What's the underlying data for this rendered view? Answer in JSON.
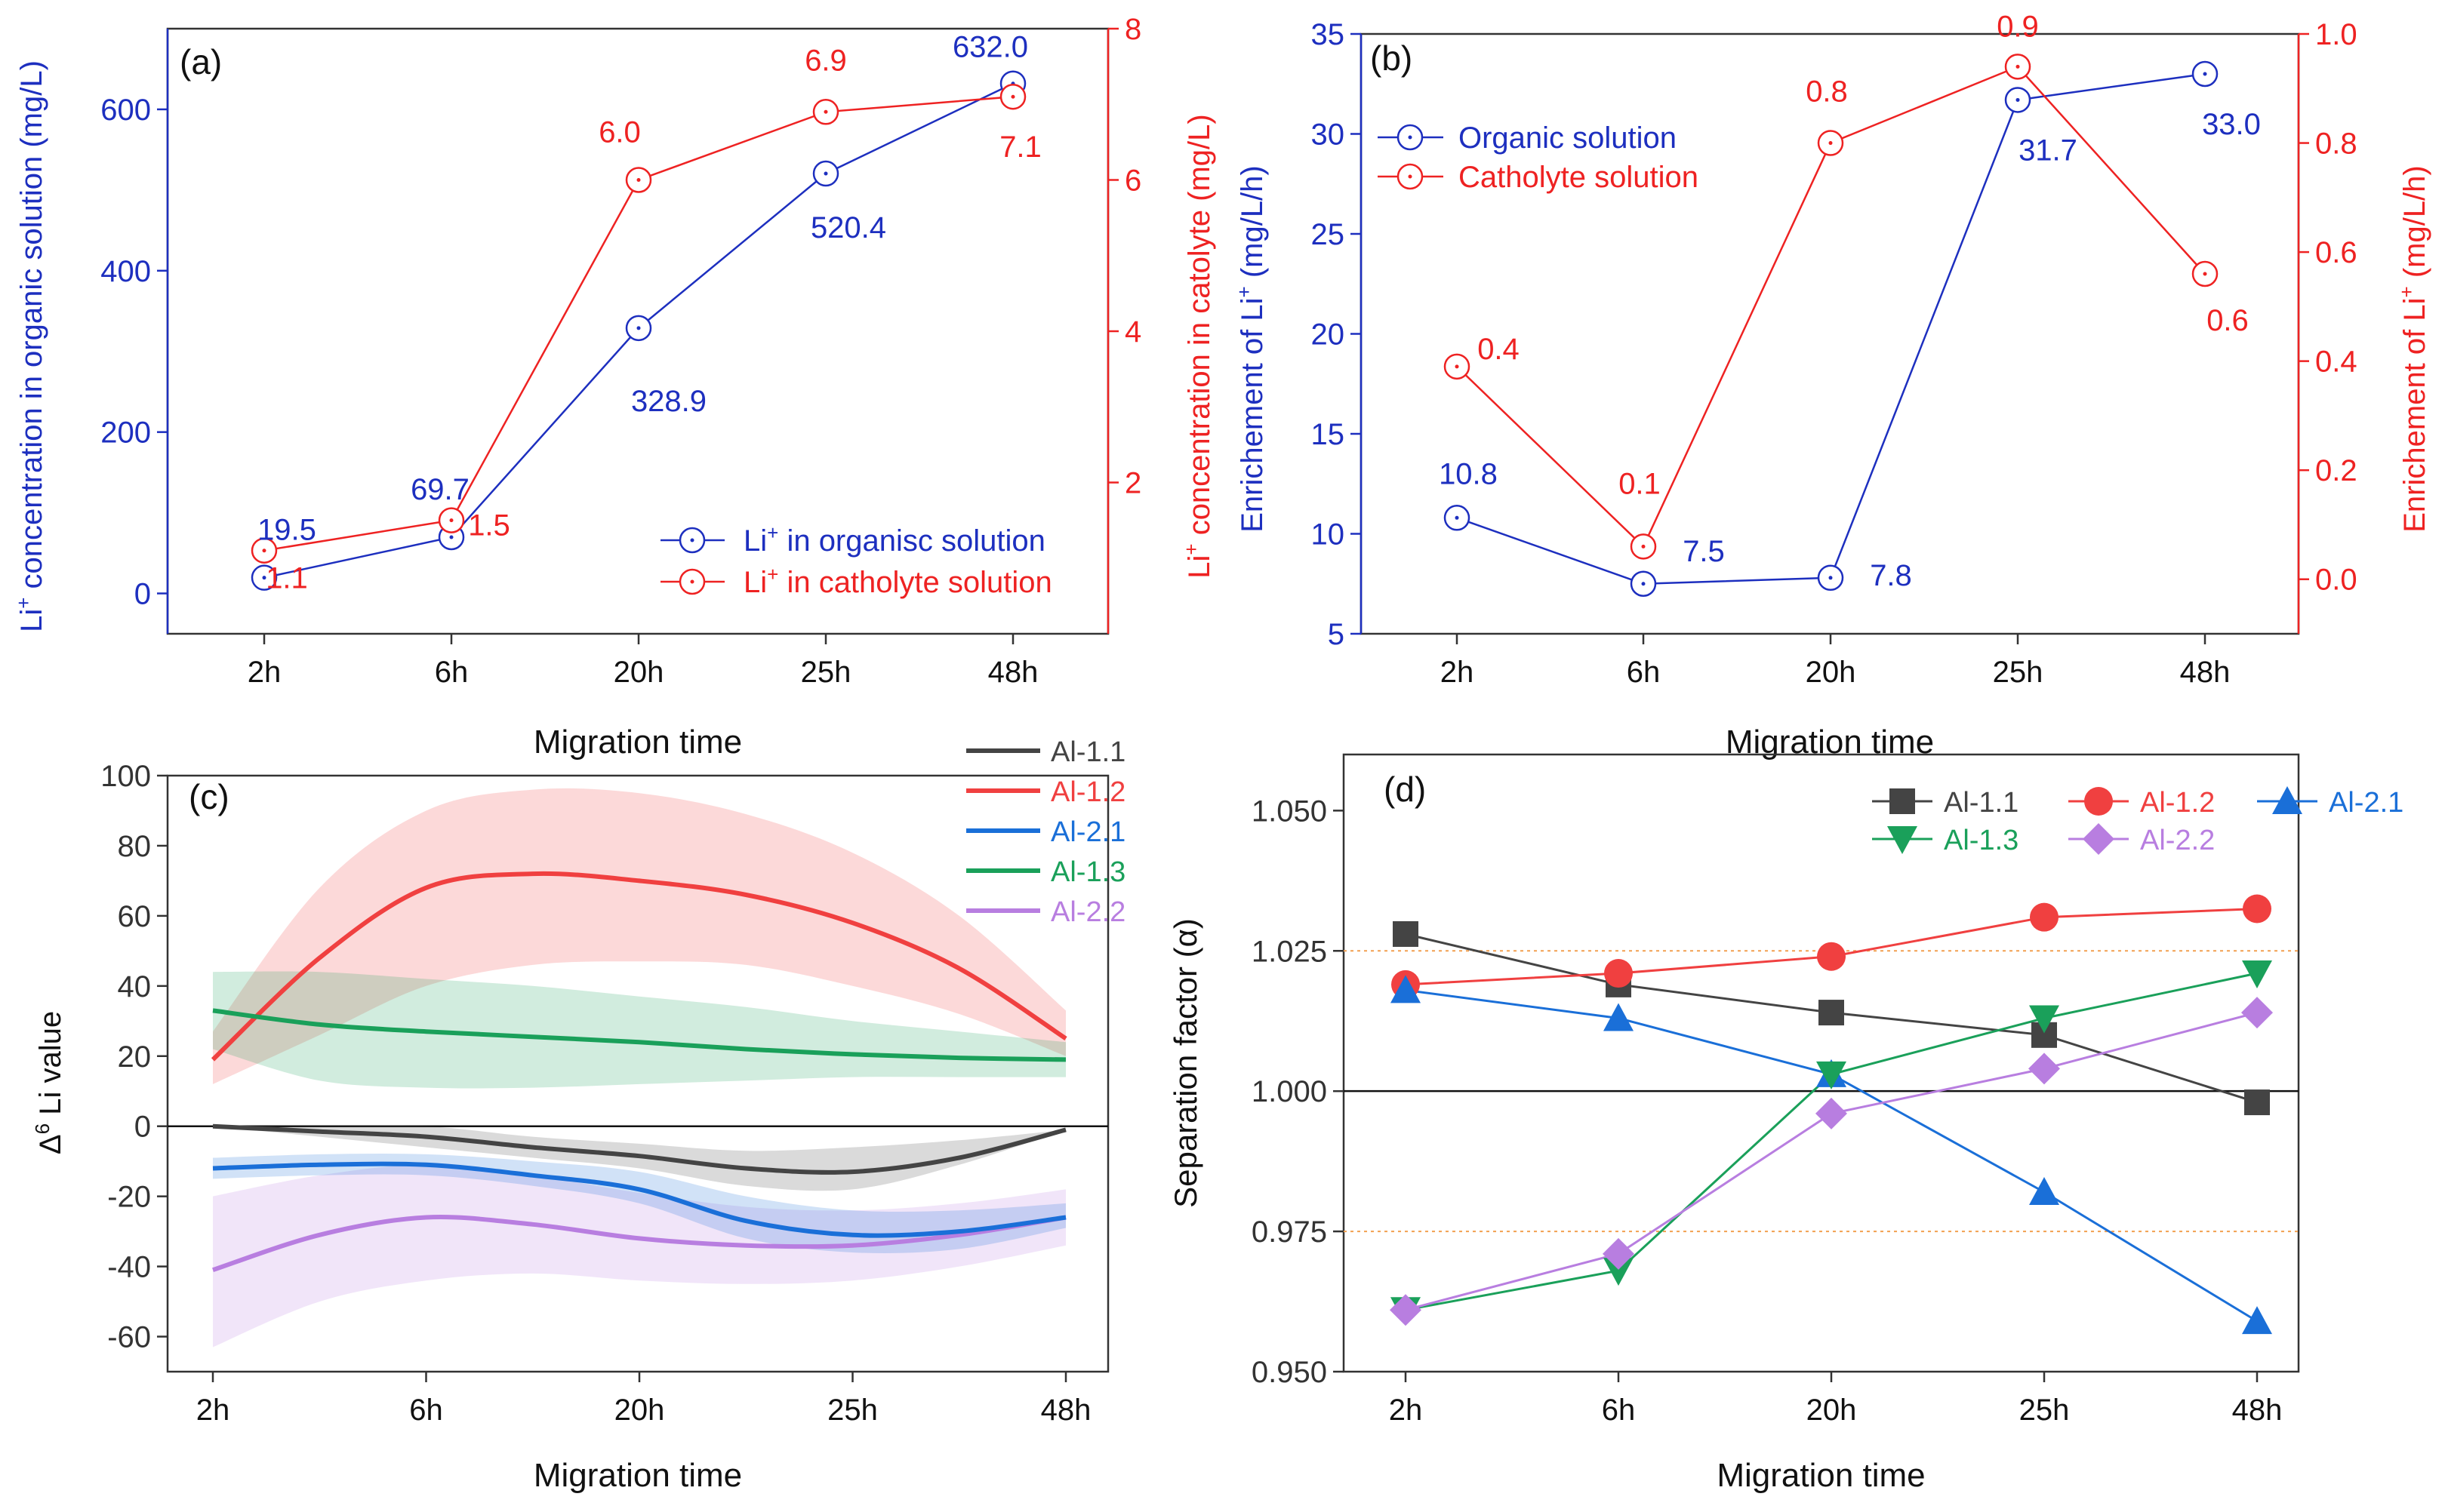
{
  "figure": {
    "colors": {
      "blue": "#1d2fbf",
      "red": "#ee2222",
      "black": "#333333",
      "al11": "#444444",
      "al12": "#f04040",
      "al21": "#1a6fd8",
      "al13": "#1aa05a",
      "al22": "#b87ee0",
      "orange_ref": "#f2a050"
    }
  },
  "chart_data": [
    {
      "panel": "a",
      "type": "line",
      "panel_label": "(a)",
      "categories": [
        "2h",
        "6h",
        "20h",
        "25h",
        "48h"
      ],
      "xlabel": "Migration time",
      "ylabel_left": {
        "pre": "Li",
        "sup": "+",
        "post": " concentration in organic solution (mg/L)"
      },
      "ylabel_right": {
        "pre": "Li",
        "sup": "+",
        "post": " concentration in catolyte (mg/L)"
      },
      "ylim_left": [
        -50,
        700
      ],
      "ylim_right": [
        0,
        8
      ],
      "yticks_left": [
        "0",
        "200",
        "400",
        "600"
      ],
      "yticks_right": [
        "2",
        "4",
        "6",
        "8"
      ],
      "series": [
        {
          "name_pre": "Li",
          "name_sup": "+",
          "name_post": " in organisc solution",
          "axis": "left",
          "values": [
            19.5,
            69.7,
            328.9,
            520.4,
            632.0
          ],
          "labels": [
            "19.5",
            "69.7",
            "328.9",
            "520.4",
            "632.0"
          ]
        },
        {
          "name_pre": "Li",
          "name_sup": "+",
          "name_post": " in catholyte solution",
          "axis": "right",
          "values": [
            1.1,
            1.5,
            6.0,
            6.9,
            7.1
          ],
          "labels": [
            "1.1",
            "1.5",
            "6.0",
            "6.9",
            "7.1"
          ]
        }
      ],
      "legend": "bottom-right"
    },
    {
      "panel": "b",
      "type": "line",
      "panel_label": "(b)",
      "categories": [
        "2h",
        "6h",
        "20h",
        "25h",
        "48h"
      ],
      "xlabel": "Migration time",
      "ylabel_left": {
        "pre": "Enrichement of Li",
        "sup": "+",
        "post": " (mg/L/h)"
      },
      "ylabel_right": {
        "pre": "Enrichement of Li",
        "sup": "+",
        "post": " (mg/L/h)"
      },
      "ylim_left": [
        5,
        35
      ],
      "ylim_right": [
        -0.1,
        1.0
      ],
      "yticks_left": [
        "5",
        "10",
        "15",
        "20",
        "25",
        "30",
        "35"
      ],
      "yticks_right": [
        "0.0",
        "0.2",
        "0.4",
        "0.6",
        "0.8",
        "1.0"
      ],
      "series": [
        {
          "name": "Organic solution",
          "axis": "left",
          "values": [
            10.8,
            7.5,
            7.8,
            31.7,
            33.0
          ],
          "labels": [
            "10.8",
            "7.5",
            "7.8",
            "31.7",
            "33.0"
          ]
        },
        {
          "name": "Catholyte solution",
          "axis": "right",
          "values": [
            0.39,
            0.06,
            0.8,
            0.94,
            0.56
          ],
          "labels": [
            "0.4",
            "0.1",
            "0.8",
            "0.9",
            "0.6"
          ]
        }
      ],
      "legend": "top-left"
    },
    {
      "panel": "c",
      "type": "area",
      "panel_label": "(c)",
      "categories": [
        "2h",
        "6h",
        "20h",
        "25h",
        "48h"
      ],
      "xlabel": "Migration time",
      "ylabel": {
        "pre": "Δ",
        "sup": "6",
        "post": " Li value"
      },
      "ylim": [
        -70,
        100
      ],
      "yticks": [
        "-60",
        "-40",
        "-20",
        "0",
        "20",
        "40",
        "60",
        "80",
        "100"
      ],
      "series": [
        {
          "name": "Al-1.1",
          "x": [
            0,
            0.5,
            1,
            1.5,
            2,
            2.5,
            3,
            3.5,
            4
          ],
          "mean": [
            0,
            -1.5,
            -3,
            -6,
            -8.5,
            -12,
            -13,
            -9,
            -1
          ],
          "lower": [
            0,
            -3,
            -6,
            -9,
            -12,
            -17,
            -18,
            -11,
            -1
          ],
          "upper": [
            0,
            0,
            0,
            -3,
            -5,
            -7,
            -6,
            -4,
            -1
          ]
        },
        {
          "name": "Al-1.2",
          "x": [
            0,
            0.5,
            1,
            1.5,
            2,
            2.5,
            3,
            3.5,
            4
          ],
          "mean": [
            19,
            48,
            68,
            72,
            70,
            66,
            58,
            45,
            25
          ],
          "lower": [
            12,
            26,
            40,
            46,
            47,
            46,
            40,
            32,
            20
          ],
          "upper": [
            27,
            68,
            90,
            96,
            95,
            89,
            78,
            60,
            33
          ]
        },
        {
          "name": "Al-2.1",
          "x": [
            0,
            0.5,
            1,
            1.5,
            2,
            2.5,
            3,
            3.5,
            4
          ],
          "mean": [
            -12,
            -11,
            -11,
            -14,
            -18,
            -27,
            -31,
            -30,
            -26
          ],
          "lower": [
            -15,
            -14,
            -14,
            -17,
            -22,
            -32,
            -36,
            -35,
            -29
          ],
          "upper": [
            -9,
            -8,
            -8,
            -10,
            -13,
            -20,
            -24,
            -24,
            -22
          ]
        },
        {
          "name": "Al-1.3",
          "x": [
            0,
            0.5,
            1,
            1.5,
            2,
            2.5,
            3,
            3.5,
            4
          ],
          "mean": [
            33,
            29,
            27,
            25.5,
            24,
            22,
            20.5,
            19.5,
            19
          ],
          "lower": [
            22,
            13,
            11,
            11,
            12,
            13,
            14,
            14,
            14
          ],
          "upper": [
            44,
            44,
            42,
            40,
            37,
            34,
            30,
            27,
            24
          ]
        },
        {
          "name": "Al-2.2",
          "x": [
            0,
            0.5,
            1,
            1.5,
            2,
            2.5,
            3,
            3.5,
            4
          ],
          "mean": [
            -41,
            -31,
            -26,
            -28,
            -32,
            -34,
            -34,
            -31,
            -26
          ],
          "lower": [
            -63,
            -50,
            -44,
            -42,
            -44,
            -45,
            -44,
            -40,
            -34
          ],
          "upper": [
            -20,
            -14,
            -11,
            -14,
            -19,
            -23,
            -24,
            -22,
            -18
          ]
        }
      ],
      "legend": "top-right"
    },
    {
      "panel": "d",
      "type": "line",
      "panel_label": "(d)",
      "categories": [
        "2h",
        "6h",
        "20h",
        "25h",
        "48h"
      ],
      "xlabel": "Migration time",
      "ylabel": "Separation factor (α)",
      "ylim": [
        0.95,
        1.06
      ],
      "yticks": [
        "0.950",
        "0.975",
        "1.000",
        "1.025",
        "1.050"
      ],
      "reference_lines": [
        0.975,
        1.0,
        1.025
      ],
      "series": [
        {
          "name": "Al-1.1",
          "marker": "square",
          "values": [
            1.028,
            1.019,
            1.014,
            1.01,
            0.998
          ]
        },
        {
          "name": "Al-1.2",
          "marker": "circle",
          "values": [
            1.019,
            1.021,
            1.024,
            1.031,
            1.0325
          ]
        },
        {
          "name": "Al-2.1",
          "marker": "triangle-up",
          "values": [
            1.018,
            1.013,
            1.003,
            0.982,
            0.959
          ]
        },
        {
          "name": "Al-1.3",
          "marker": "triangle-down",
          "values": [
            0.961,
            0.968,
            1.003,
            1.013,
            1.021
          ]
        },
        {
          "name": "Al-2.2",
          "marker": "diamond",
          "values": [
            0.961,
            0.971,
            0.996,
            1.004,
            1.014
          ]
        }
      ],
      "legend": "top-right"
    }
  ]
}
